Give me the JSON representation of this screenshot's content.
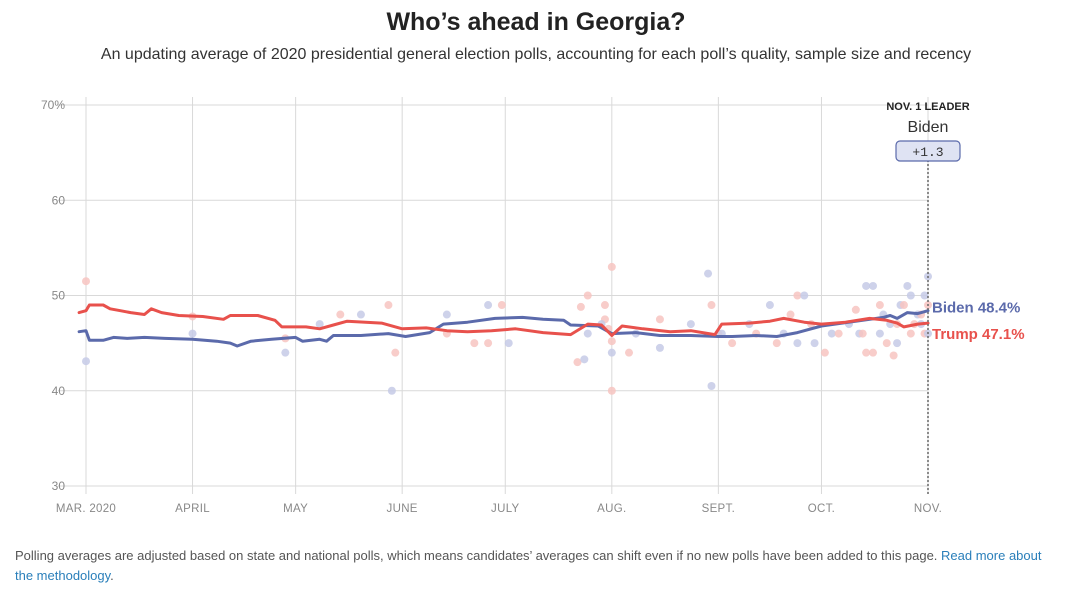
{
  "header": {
    "title": "Who’s ahead in Georgia?",
    "subtitle": "An updating average of 2020 presidential general election polls, accounting for each poll’s quality, sample size and recency"
  },
  "footer": {
    "text": "Polling averages are adjusted based on state and national polls, which means candidates’ averages can shift even if no new polls have been added to this page. ",
    "link_text": "Read more about the methodology",
    "end_text": "."
  },
  "leader_box": {
    "heading": "NOV. 1 LEADER",
    "name": "Biden",
    "margin": "+1.3"
  },
  "colors": {
    "biden": "#5b6aab",
    "trump": "#e8514c",
    "biden_dot": "#c5cae6",
    "trump_dot": "#f7c4c1",
    "grid": "#d9d9d9"
  },
  "chart_data": {
    "type": "line",
    "ylim": [
      30,
      70
    ],
    "y_ticks": [
      {
        "value": 70,
        "label": "70%"
      },
      {
        "value": 60,
        "label": "60"
      },
      {
        "value": 50,
        "label": "50"
      },
      {
        "value": 40,
        "label": "40"
      },
      {
        "value": 30,
        "label": "30"
      }
    ],
    "x_range": [
      "2020-03-01",
      "2020-11-01"
    ],
    "x_ticks": [
      {
        "date": "2020-03-01",
        "label": "MAR. 2020"
      },
      {
        "date": "2020-04-01",
        "label": "APRIL"
      },
      {
        "date": "2020-05-01",
        "label": "MAY"
      },
      {
        "date": "2020-06-01",
        "label": "JUNE"
      },
      {
        "date": "2020-07-01",
        "label": "JULY"
      },
      {
        "date": "2020-08-01",
        "label": "AUG."
      },
      {
        "date": "2020-09-01",
        "label": "SEPT."
      },
      {
        "date": "2020-10-01",
        "label": "OCT."
      },
      {
        "date": "2020-11-01",
        "label": "NOV."
      }
    ],
    "series": [
      {
        "name": "Biden",
        "end_label": "Biden 48.4%",
        "color": "#5b6aab",
        "points": [
          [
            "2020-02-28",
            46.2
          ],
          [
            "2020-03-01",
            46.3
          ],
          [
            "2020-03-02",
            45.3
          ],
          [
            "2020-03-06",
            45.3
          ],
          [
            "2020-03-09",
            45.6
          ],
          [
            "2020-03-13",
            45.5
          ],
          [
            "2020-03-18",
            45.6
          ],
          [
            "2020-03-24",
            45.5
          ],
          [
            "2020-04-01",
            45.4
          ],
          [
            "2020-04-08",
            45.2
          ],
          [
            "2020-04-12",
            45.0
          ],
          [
            "2020-04-14",
            44.7
          ],
          [
            "2020-04-18",
            45.2
          ],
          [
            "2020-04-24",
            45.4
          ],
          [
            "2020-05-01",
            45.6
          ],
          [
            "2020-05-03",
            45.2
          ],
          [
            "2020-05-08",
            45.4
          ],
          [
            "2020-05-10",
            45.2
          ],
          [
            "2020-05-12",
            45.8
          ],
          [
            "2020-05-20",
            45.8
          ],
          [
            "2020-05-28",
            46.0
          ],
          [
            "2020-06-02",
            45.7
          ],
          [
            "2020-06-09",
            46.1
          ],
          [
            "2020-06-13",
            47.0
          ],
          [
            "2020-06-20",
            47.2
          ],
          [
            "2020-06-28",
            47.6
          ],
          [
            "2020-07-06",
            47.7
          ],
          [
            "2020-07-12",
            47.5
          ],
          [
            "2020-07-18",
            47.4
          ],
          [
            "2020-07-20",
            46.9
          ],
          [
            "2020-07-28",
            46.8
          ],
          [
            "2020-08-01",
            46.0
          ],
          [
            "2020-08-08",
            46.1
          ],
          [
            "2020-08-15",
            45.8
          ],
          [
            "2020-08-24",
            45.8
          ],
          [
            "2020-09-01",
            45.7
          ],
          [
            "2020-09-05",
            45.7
          ],
          [
            "2020-09-12",
            45.8
          ],
          [
            "2020-09-18",
            45.7
          ],
          [
            "2020-09-24",
            46.1
          ],
          [
            "2020-10-01",
            46.8
          ],
          [
            "2020-10-07",
            47.1
          ],
          [
            "2020-10-13",
            47.4
          ],
          [
            "2020-10-19",
            47.7
          ],
          [
            "2020-10-21",
            47.9
          ],
          [
            "2020-10-23",
            47.6
          ],
          [
            "2020-10-26",
            48.2
          ],
          [
            "2020-10-29",
            48.1
          ],
          [
            "2020-11-01",
            48.4
          ]
        ]
      },
      {
        "name": "Trump",
        "end_label": "Trump 47.1%",
        "color": "#e8514c",
        "points": [
          [
            "2020-02-28",
            48.2
          ],
          [
            "2020-03-01",
            48.4
          ],
          [
            "2020-03-02",
            49.0
          ],
          [
            "2020-03-06",
            49.0
          ],
          [
            "2020-03-08",
            48.6
          ],
          [
            "2020-03-11",
            48.4
          ],
          [
            "2020-03-14",
            48.2
          ],
          [
            "2020-03-18",
            48.0
          ],
          [
            "2020-03-20",
            48.6
          ],
          [
            "2020-03-23",
            48.2
          ],
          [
            "2020-03-28",
            47.9
          ],
          [
            "2020-04-04",
            47.8
          ],
          [
            "2020-04-10",
            47.5
          ],
          [
            "2020-04-12",
            47.9
          ],
          [
            "2020-04-20",
            47.9
          ],
          [
            "2020-04-25",
            47.4
          ],
          [
            "2020-04-27",
            46.7
          ],
          [
            "2020-05-04",
            46.7
          ],
          [
            "2020-05-08",
            46.5
          ],
          [
            "2020-05-12",
            46.9
          ],
          [
            "2020-05-16",
            47.3
          ],
          [
            "2020-05-26",
            47.1
          ],
          [
            "2020-06-01",
            46.5
          ],
          [
            "2020-06-08",
            46.6
          ],
          [
            "2020-06-14",
            46.3
          ],
          [
            "2020-06-20",
            46.2
          ],
          [
            "2020-06-27",
            46.3
          ],
          [
            "2020-07-04",
            46.5
          ],
          [
            "2020-07-12",
            46.1
          ],
          [
            "2020-07-20",
            45.9
          ],
          [
            "2020-07-25",
            47.0
          ],
          [
            "2020-07-29",
            46.9
          ],
          [
            "2020-08-01",
            45.8
          ],
          [
            "2020-08-04",
            46.8
          ],
          [
            "2020-08-10",
            46.5
          ],
          [
            "2020-08-18",
            46.2
          ],
          [
            "2020-08-24",
            46.3
          ],
          [
            "2020-08-31",
            45.9
          ],
          [
            "2020-09-02",
            47.0
          ],
          [
            "2020-09-10",
            47.1
          ],
          [
            "2020-09-16",
            47.3
          ],
          [
            "2020-09-20",
            47.6
          ],
          [
            "2020-09-26",
            47.2
          ],
          [
            "2020-10-01",
            47.0
          ],
          [
            "2020-10-08",
            47.2
          ],
          [
            "2020-10-15",
            47.6
          ],
          [
            "2020-10-20",
            47.4
          ],
          [
            "2020-10-23",
            47.1
          ],
          [
            "2020-10-25",
            46.7
          ],
          [
            "2020-10-29",
            47.0
          ],
          [
            "2020-11-01",
            47.1
          ]
        ]
      }
    ],
    "polls": [
      {
        "candidate": "Trump",
        "date": "2020-03-01",
        "value": 51.5
      },
      {
        "candidate": "Biden",
        "date": "2020-03-01",
        "value": 43.1
      },
      {
        "candidate": "Trump",
        "date": "2020-04-01",
        "value": 47.8
      },
      {
        "candidate": "Biden",
        "date": "2020-04-01",
        "value": 46.0
      },
      {
        "candidate": "Trump",
        "date": "2020-04-28",
        "value": 45.5
      },
      {
        "candidate": "Biden",
        "date": "2020-04-28",
        "value": 44.0
      },
      {
        "candidate": "Biden",
        "date": "2020-05-08",
        "value": 47.0
      },
      {
        "candidate": "Trump",
        "date": "2020-05-14",
        "value": 48.0
      },
      {
        "candidate": "Biden",
        "date": "2020-05-20",
        "value": 48.0
      },
      {
        "candidate": "Trump",
        "date": "2020-05-28",
        "value": 49.0
      },
      {
        "candidate": "Biden",
        "date": "2020-05-29",
        "value": 40.0
      },
      {
        "candidate": "Trump",
        "date": "2020-05-30",
        "value": 44.0
      },
      {
        "candidate": "Biden",
        "date": "2020-06-14",
        "value": 48.0
      },
      {
        "candidate": "Trump",
        "date": "2020-06-14",
        "value": 46.0
      },
      {
        "candidate": "Biden",
        "date": "2020-06-26",
        "value": 49.0
      },
      {
        "candidate": "Trump",
        "date": "2020-06-26",
        "value": 45.0
      },
      {
        "candidate": "Trump",
        "date": "2020-06-22",
        "value": 45.0
      },
      {
        "candidate": "Trump",
        "date": "2020-06-30",
        "value": 49.0
      },
      {
        "candidate": "Biden",
        "date": "2020-07-02",
        "value": 45.0
      },
      {
        "candidate": "Trump",
        "date": "2020-07-22",
        "value": 43.0
      },
      {
        "candidate": "Biden",
        "date": "2020-07-24",
        "value": 43.3
      },
      {
        "candidate": "Trump",
        "date": "2020-07-23",
        "value": 48.8
      },
      {
        "candidate": "Trump",
        "date": "2020-07-25",
        "value": 50.0
      },
      {
        "candidate": "Biden",
        "date": "2020-07-25",
        "value": 46.0
      },
      {
        "candidate": "Trump",
        "date": "2020-07-30",
        "value": 49.0
      },
      {
        "candidate": "Trump",
        "date": "2020-07-30",
        "value": 47.5
      },
      {
        "candidate": "Biden",
        "date": "2020-07-29",
        "value": 47.0
      },
      {
        "candidate": "Trump",
        "date": "2020-07-31",
        "value": 46.5
      },
      {
        "candidate": "Trump",
        "date": "2020-08-01",
        "value": 53.0
      },
      {
        "candidate": "Trump",
        "date": "2020-08-01",
        "value": 40.0
      },
      {
        "candidate": "Biden",
        "date": "2020-08-01",
        "value": 44.0
      },
      {
        "candidate": "Trump",
        "date": "2020-08-01",
        "value": 45.2
      },
      {
        "candidate": "Biden",
        "date": "2020-08-08",
        "value": 46.0
      },
      {
        "candidate": "Trump",
        "date": "2020-08-06",
        "value": 44.0
      },
      {
        "candidate": "Biden",
        "date": "2020-08-15",
        "value": 44.5
      },
      {
        "candidate": "Trump",
        "date": "2020-08-15",
        "value": 47.5
      },
      {
        "candidate": "Biden",
        "date": "2020-08-24",
        "value": 47.0
      },
      {
        "candidate": "Biden",
        "date": "2020-08-29",
        "value": 52.3
      },
      {
        "candidate": "Trump",
        "date": "2020-08-30",
        "value": 49.0
      },
      {
        "candidate": "Biden",
        "date": "2020-08-30",
        "value": 40.5
      },
      {
        "candidate": "Trump",
        "date": "2020-09-01",
        "value": 46.0
      },
      {
        "candidate": "Biden",
        "date": "2020-09-02",
        "value": 46.0
      },
      {
        "candidate": "Trump",
        "date": "2020-09-05",
        "value": 45.0
      },
      {
        "candidate": "Biden",
        "date": "2020-09-10",
        "value": 47.0
      },
      {
        "candidate": "Trump",
        "date": "2020-09-12",
        "value": 46.0
      },
      {
        "candidate": "Biden",
        "date": "2020-09-16",
        "value": 49.0
      },
      {
        "candidate": "Trump",
        "date": "2020-09-18",
        "value": 45.0
      },
      {
        "candidate": "Biden",
        "date": "2020-09-20",
        "value": 46.0
      },
      {
        "candidate": "Trump",
        "date": "2020-09-22",
        "value": 48.0
      },
      {
        "candidate": "Biden",
        "date": "2020-09-24",
        "value": 45.0
      },
      {
        "candidate": "Trump",
        "date": "2020-09-24",
        "value": 50.0
      },
      {
        "candidate": "Biden",
        "date": "2020-09-26",
        "value": 50.0
      },
      {
        "candidate": "Trump",
        "date": "2020-09-28",
        "value": 47.0
      },
      {
        "candidate": "Biden",
        "date": "2020-09-29",
        "value": 45.0
      },
      {
        "candidate": "Trump",
        "date": "2020-10-02",
        "value": 44.0
      },
      {
        "candidate": "Biden",
        "date": "2020-10-04",
        "value": 46.0
      },
      {
        "candidate": "Trump",
        "date": "2020-10-06",
        "value": 46.0
      },
      {
        "candidate": "Biden",
        "date": "2020-10-09",
        "value": 47.0
      },
      {
        "candidate": "Trump",
        "date": "2020-10-11",
        "value": 48.5
      },
      {
        "candidate": "Biden",
        "date": "2020-10-12",
        "value": 46.0
      },
      {
        "candidate": "Trump",
        "date": "2020-10-13",
        "value": 46.0
      },
      {
        "candidate": "Biden",
        "date": "2020-10-14",
        "value": 51.0
      },
      {
        "candidate": "Trump",
        "date": "2020-10-14",
        "value": 44.0
      },
      {
        "candidate": "Biden",
        "date": "2020-10-16",
        "value": 51.0
      },
      {
        "candidate": "Trump",
        "date": "2020-10-16",
        "value": 44.0
      },
      {
        "candidate": "Biden",
        "date": "2020-10-18",
        "value": 46.0
      },
      {
        "candidate": "Trump",
        "date": "2020-10-18",
        "value": 49.0
      },
      {
        "candidate": "Biden",
        "date": "2020-10-19",
        "value": 48.0
      },
      {
        "candidate": "Trump",
        "date": "2020-10-20",
        "value": 45.0
      },
      {
        "candidate": "Biden",
        "date": "2020-10-21",
        "value": 47.0
      },
      {
        "candidate": "Trump",
        "date": "2020-10-22",
        "value": 43.7
      },
      {
        "candidate": "Biden",
        "date": "2020-10-23",
        "value": 45.0
      },
      {
        "candidate": "Trump",
        "date": "2020-10-23",
        "value": 47.0
      },
      {
        "candidate": "Biden",
        "date": "2020-10-24",
        "value": 49.0
      },
      {
        "candidate": "Trump",
        "date": "2020-10-25",
        "value": 49.0
      },
      {
        "candidate": "Biden",
        "date": "2020-10-26",
        "value": 51.0
      },
      {
        "candidate": "Trump",
        "date": "2020-10-27",
        "value": 46.0
      },
      {
        "candidate": "Biden",
        "date": "2020-10-27",
        "value": 50.0
      },
      {
        "candidate": "Trump",
        "date": "2020-10-28",
        "value": 47.0
      },
      {
        "candidate": "Biden",
        "date": "2020-10-29",
        "value": 48.0
      },
      {
        "candidate": "Trump",
        "date": "2020-10-30",
        "value": 48.0
      },
      {
        "candidate": "Biden",
        "date": "2020-10-30",
        "value": 47.0
      },
      {
        "candidate": "Trump",
        "date": "2020-10-31",
        "value": 46.0
      },
      {
        "candidate": "Biden",
        "date": "2020-10-31",
        "value": 50.0
      },
      {
        "candidate": "Biden",
        "date": "2020-11-01",
        "value": 52.0
      },
      {
        "candidate": "Trump",
        "date": "2020-11-01",
        "value": 49.0
      },
      {
        "candidate": "Biden",
        "date": "2020-11-01",
        "value": 46.0
      }
    ]
  }
}
